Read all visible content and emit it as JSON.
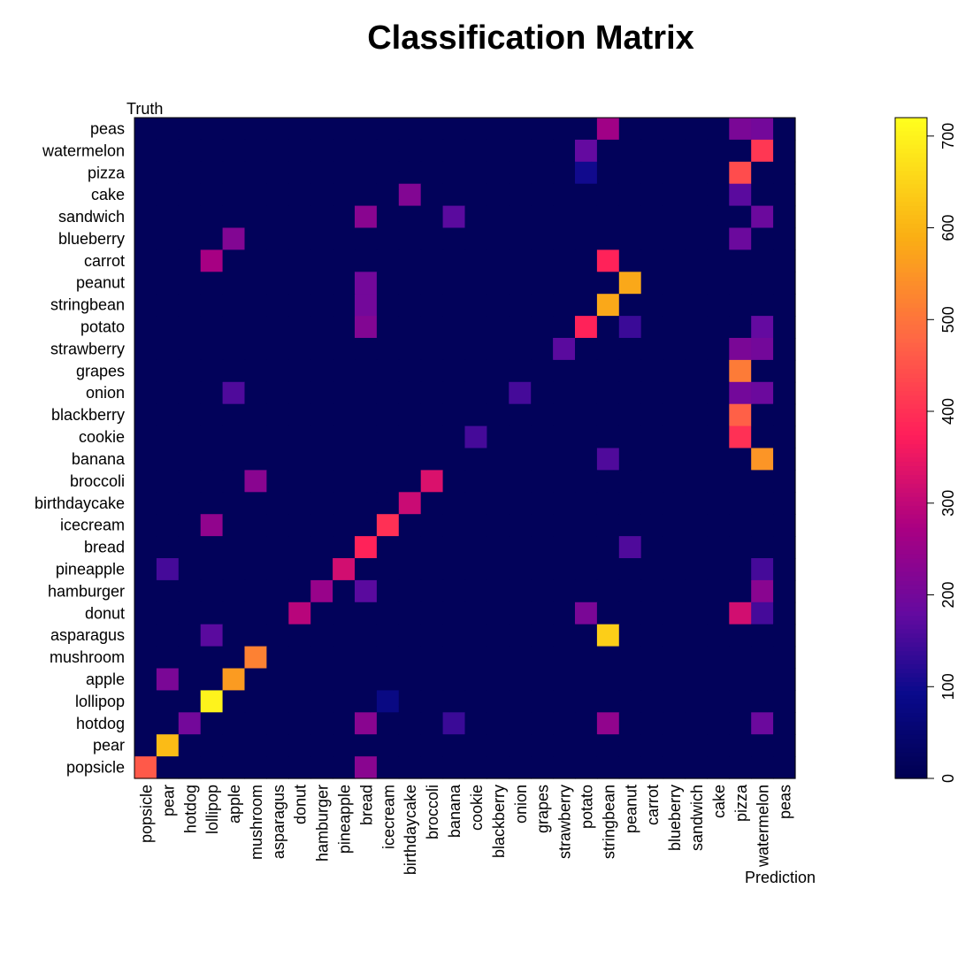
{
  "chart_data": {
    "type": "heatmap",
    "title": "Classification Matrix",
    "xlabel": "Prediction",
    "ylabel": "Truth",
    "x_categories": [
      "popsicle",
      "pear",
      "hotdog",
      "lollipop",
      "apple",
      "mushroom",
      "asparagus",
      "donut",
      "hamburger",
      "pineapple",
      "bread",
      "icecream",
      "birthdaycake",
      "broccoli",
      "banana",
      "cookie",
      "blackberry",
      "onion",
      "grapes",
      "strawberry",
      "potato",
      "stringbean",
      "peanut",
      "carrot",
      "blueberry",
      "sandwich",
      "cake",
      "pizza",
      "watermelon",
      "peas"
    ],
    "y_categories_top_to_bottom": [
      "peas",
      "watermelon",
      "pizza",
      "cake",
      "sandwich",
      "blueberry",
      "carrot",
      "peanut",
      "stringbean",
      "potato",
      "strawberry",
      "grapes",
      "onion",
      "blackberry",
      "cookie",
      "banana",
      "broccoli",
      "birthdaycake",
      "icecream",
      "bread",
      "pineapple",
      "hamburger",
      "donut",
      "asparagus",
      "mushroom",
      "apple",
      "lollipop",
      "hotdog",
      "pear",
      "popsicle"
    ],
    "colorbar": {
      "min": 0,
      "max": 720,
      "ticks": [
        0,
        100,
        200,
        300,
        400,
        500,
        600,
        700
      ]
    },
    "notable_cells": [
      {
        "truth": "popsicle",
        "prediction": "popsicle",
        "value": 460
      },
      {
        "truth": "popsicle",
        "prediction": "bread",
        "value": 230
      },
      {
        "truth": "pear",
        "prediction": "pear",
        "value": 610
      },
      {
        "truth": "hotdog",
        "prediction": "hotdog",
        "value": 200
      },
      {
        "truth": "hotdog",
        "prediction": "bread",
        "value": 230
      },
      {
        "truth": "hotdog",
        "prediction": "banana",
        "value": 140
      },
      {
        "truth": "hotdog",
        "prediction": "stringbean",
        "value": 240
      },
      {
        "truth": "hotdog",
        "prediction": "watermelon",
        "value": 190
      },
      {
        "truth": "lollipop",
        "prediction": "lollipop",
        "value": 700
      },
      {
        "truth": "lollipop",
        "prediction": "icecream",
        "value": 80
      },
      {
        "truth": "apple",
        "prediction": "pear",
        "value": 210
      },
      {
        "truth": "apple",
        "prediction": "apple",
        "value": 560
      },
      {
        "truth": "mushroom",
        "prediction": "mushroom",
        "value": 520
      },
      {
        "truth": "asparagus",
        "prediction": "lollipop",
        "value": 170
      },
      {
        "truth": "asparagus",
        "prediction": "stringbean",
        "value": 640
      },
      {
        "truth": "donut",
        "prediction": "donut",
        "value": 290
      },
      {
        "truth": "donut",
        "prediction": "potato",
        "value": 210
      },
      {
        "truth": "donut",
        "prediction": "pizza",
        "value": 320
      },
      {
        "truth": "donut",
        "prediction": "watermelon",
        "value": 150
      },
      {
        "truth": "hamburger",
        "prediction": "hamburger",
        "value": 250
      },
      {
        "truth": "hamburger",
        "prediction": "bread",
        "value": 170
      },
      {
        "truth": "hamburger",
        "prediction": "watermelon",
        "value": 230
      },
      {
        "truth": "pineapple",
        "prediction": "pear",
        "value": 150
      },
      {
        "truth": "pineapple",
        "prediction": "pineapple",
        "value": 320
      },
      {
        "truth": "pineapple",
        "prediction": "watermelon",
        "value": 150
      },
      {
        "truth": "bread",
        "prediction": "bread",
        "value": 380
      },
      {
        "truth": "bread",
        "prediction": "peanut",
        "value": 160
      },
      {
        "truth": "icecream",
        "prediction": "lollipop",
        "value": 240
      },
      {
        "truth": "icecream",
        "prediction": "icecream",
        "value": 400
      },
      {
        "truth": "birthdaycake",
        "prediction": "birthdaycake",
        "value": 310
      },
      {
        "truth": "broccoli",
        "prediction": "mushroom",
        "value": 230
      },
      {
        "truth": "broccoli",
        "prediction": "broccoli",
        "value": 330
      },
      {
        "truth": "banana",
        "prediction": "stringbean",
        "value": 160
      },
      {
        "truth": "banana",
        "prediction": "watermelon",
        "value": 550
      },
      {
        "truth": "cookie",
        "prediction": "cookie",
        "value": 150
      },
      {
        "truth": "cookie",
        "prediction": "pizza",
        "value": 400
      },
      {
        "truth": "blackberry",
        "prediction": "pizza",
        "value": 470
      },
      {
        "truth": "onion",
        "prediction": "apple",
        "value": 160
      },
      {
        "truth": "onion",
        "prediction": "onion",
        "value": 150
      },
      {
        "truth": "onion",
        "prediction": "pizza",
        "value": 200
      },
      {
        "truth": "onion",
        "prediction": "watermelon",
        "value": 190
      },
      {
        "truth": "grapes",
        "prediction": "pizza",
        "value": 510
      },
      {
        "truth": "strawberry",
        "prediction": "strawberry",
        "value": 170
      },
      {
        "truth": "strawberry",
        "prediction": "pizza",
        "value": 210
      },
      {
        "truth": "strawberry",
        "prediction": "watermelon",
        "value": 200
      },
      {
        "truth": "potato",
        "prediction": "bread",
        "value": 220
      },
      {
        "truth": "potato",
        "prediction": "potato",
        "value": 380
      },
      {
        "truth": "potato",
        "prediction": "peanut",
        "value": 140
      },
      {
        "truth": "potato",
        "prediction": "watermelon",
        "value": 180
      },
      {
        "truth": "stringbean",
        "prediction": "bread",
        "value": 200
      },
      {
        "truth": "stringbean",
        "prediction": "stringbean",
        "value": 580
      },
      {
        "truth": "peanut",
        "prediction": "bread",
        "value": 200
      },
      {
        "truth": "peanut",
        "prediction": "peanut",
        "value": 580
      },
      {
        "truth": "carrot",
        "prediction": "lollipop",
        "value": 270
      },
      {
        "truth": "carrot",
        "prediction": "stringbean",
        "value": 380
      },
      {
        "truth": "blueberry",
        "prediction": "apple",
        "value": 220
      },
      {
        "truth": "blueberry",
        "prediction": "pizza",
        "value": 190
      },
      {
        "truth": "sandwich",
        "prediction": "bread",
        "value": 230
      },
      {
        "truth": "sandwich",
        "prediction": "banana",
        "value": 170
      },
      {
        "truth": "sandwich",
        "prediction": "watermelon",
        "value": 190
      },
      {
        "truth": "cake",
        "prediction": "birthdaycake",
        "value": 220
      },
      {
        "truth": "cake",
        "prediction": "pizza",
        "value": 170
      },
      {
        "truth": "pizza",
        "prediction": "potato",
        "value": 100
      },
      {
        "truth": "pizza",
        "prediction": "pizza",
        "value": 440
      },
      {
        "truth": "watermelon",
        "prediction": "potato",
        "value": 180
      },
      {
        "truth": "watermelon",
        "prediction": "watermelon",
        "value": 410
      },
      {
        "truth": "peas",
        "prediction": "stringbean",
        "value": 260
      },
      {
        "truth": "peas",
        "prediction": "pizza",
        "value": 210
      },
      {
        "truth": "peas",
        "prediction": "watermelon",
        "value": 200
      }
    ],
    "background_value": 15
  }
}
